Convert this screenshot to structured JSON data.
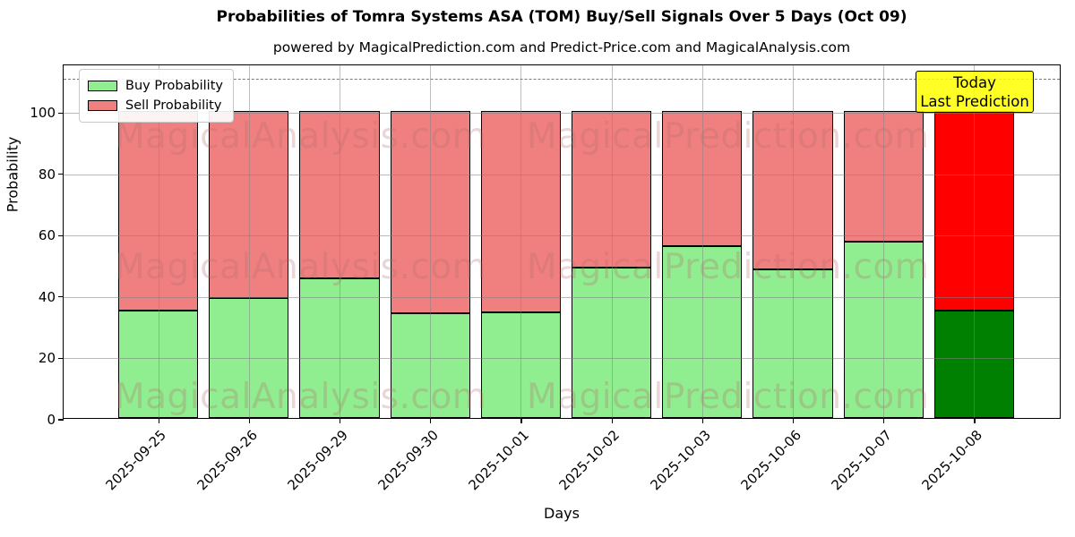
{
  "title": "Probabilities of Tomra Systems ASA (TOM) Buy/Sell Signals Over 5 Days (Oct 09)",
  "subtitle": "powered by MagicalPrediction.com and Predict-Price.com and MagicalAnalysis.com",
  "watermark": {
    "left_text": "MagicalAnalysis.com",
    "right_text": "MagicalPrediction.com",
    "color": "rgba(178,106,106,0.28)"
  },
  "legend": {
    "items": [
      {
        "label": "Buy Probability",
        "color": "#90ee90"
      },
      {
        "label": "Sell Probability",
        "color": "#f08080"
      }
    ]
  },
  "annotation_box": {
    "line1": "Today",
    "line2": "Last Prediction",
    "bg_color": "#ffff00"
  },
  "axes": {
    "ylabel": "Probability",
    "xlabel": "Days",
    "yticks": [
      0,
      20,
      40,
      60,
      80,
      100
    ],
    "y_max_units": 115.5,
    "dashed_line_y": 111,
    "grid_color": "#b0b0b0"
  },
  "chart_data": {
    "type": "bar",
    "stacked": true,
    "grid": true,
    "legend_position": "upper left",
    "title": "Probabilities of Tomra Systems ASA (TOM) Buy/Sell Signals Over 5 Days (Oct 09)",
    "xlabel": "Days",
    "ylabel": "Probability",
    "ylim": [
      0,
      115.5
    ],
    "dashed_reference_line": 111,
    "categories": [
      "2025-09-25",
      "2025-09-26",
      "2025-09-29",
      "2025-09-30",
      "2025-10-01",
      "2025-10-02",
      "2025-10-03",
      "2025-10-06",
      "2025-10-07",
      "2025-10-08"
    ],
    "series": [
      {
        "name": "Buy Probability",
        "values": [
          35,
          39,
          45.5,
          34,
          34.5,
          49,
          56,
          48.5,
          57.5,
          35
        ]
      },
      {
        "name": "Sell Probability",
        "values": [
          65,
          61,
          54.5,
          66,
          65.5,
          51,
          44,
          51.5,
          42.5,
          65
        ]
      }
    ],
    "bar_colors": {
      "buy": "#90ee90",
      "sell": "#f08080",
      "buy_last": "#008000",
      "sell_last": "#ff0000"
    }
  }
}
